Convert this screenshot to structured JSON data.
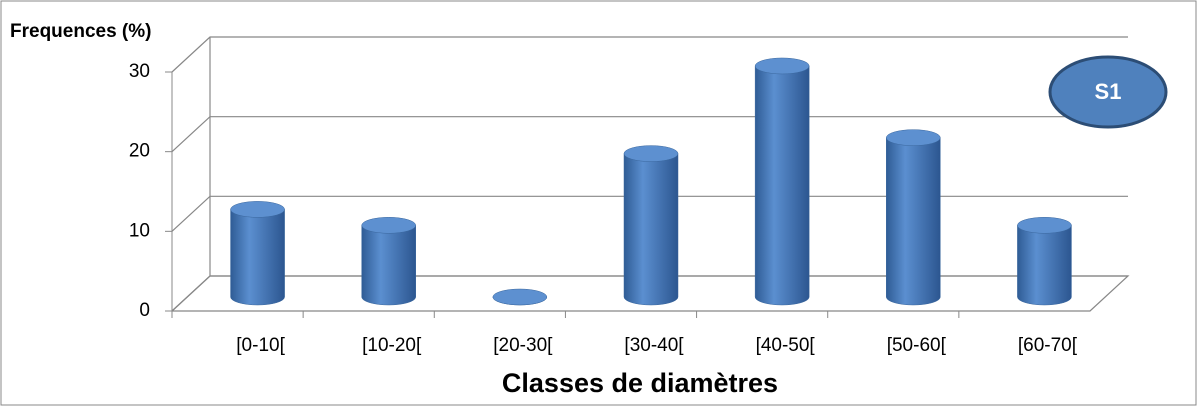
{
  "chart_data": {
    "type": "bar",
    "y_label": "Frequences (%)",
    "x_label": "Classes de diamètres",
    "annotation": "S1",
    "categories": [
      "[0-10[",
      "[10-20[",
      "[20-30[",
      "[30-40[",
      "[40-50[",
      "[50-60[",
      "[60-70["
    ],
    "values": [
      11,
      9,
      0,
      18,
      29,
      20,
      9
    ],
    "color": "#4a7ebb",
    "ylim": [
      0,
      30
    ],
    "yticks": [
      0,
      10,
      20,
      30
    ],
    "grid": true
  }
}
